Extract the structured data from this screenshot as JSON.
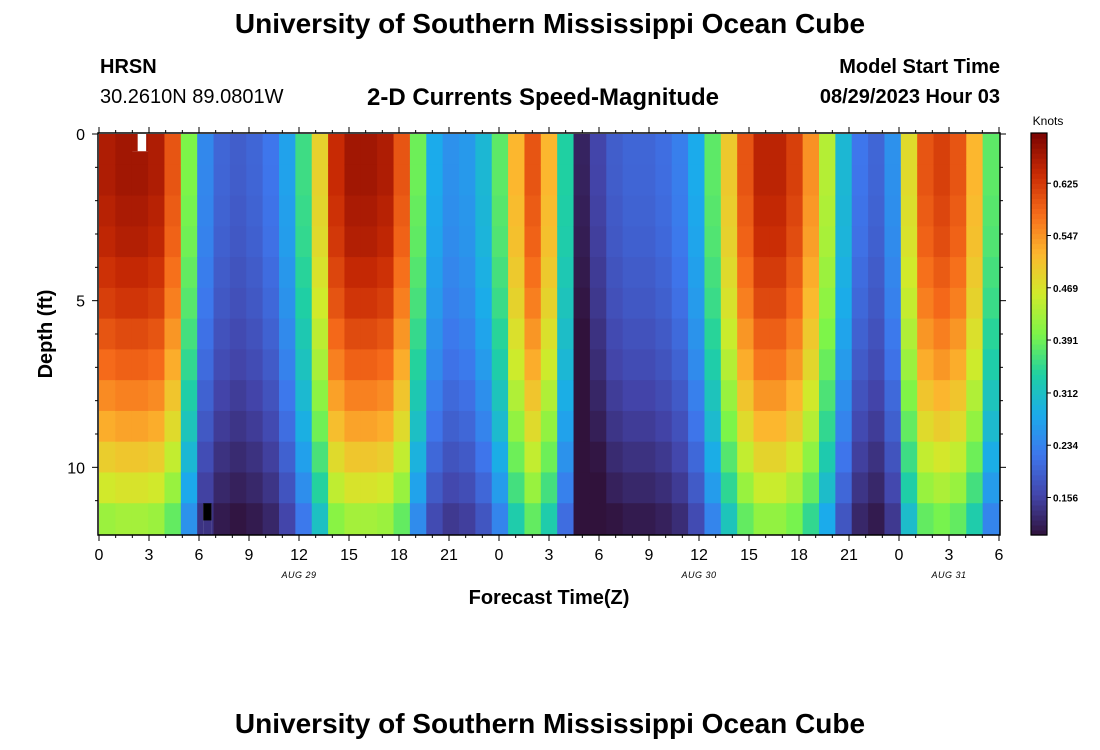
{
  "header": {
    "title": "University of Southern Mississippi Ocean Cube",
    "station": "HRSN",
    "coordinates": "30.2610N  89.0801W",
    "subtitle": "2-D Currents Speed-Magnitude",
    "model_start_label": "Model Start Time",
    "model_start_value": "08/29/2023 Hour 03"
  },
  "footer": {
    "title": "University of Southern Mississippi Ocean Cube"
  },
  "chart_data": {
    "type": "heatmap",
    "title": "2-D Currents Speed-Magnitude",
    "xlabel": "Forecast Time(Z)",
    "ylabel": "Depth (ft)",
    "x_range_hours": [
      0,
      54
    ],
    "y_range_ft": [
      0,
      12
    ],
    "x_tick_labels": [
      "0",
      "3",
      "6",
      "9",
      "12",
      "15",
      "18",
      "21",
      "0",
      "3",
      "6",
      "9",
      "12",
      "15",
      "18",
      "21",
      "0",
      "3",
      "6"
    ],
    "y_tick_labels": [
      "0",
      "5",
      "10"
    ],
    "y_tick_values": [
      0,
      5,
      10
    ],
    "date_labels": [
      {
        "label": "AUG 29",
        "hour": 12
      },
      {
        "label": "AUG 30",
        "hour": 36
      },
      {
        "label": "AUG 31",
        "hour": 51
      }
    ],
    "colorbar": {
      "title": "Knots",
      "ticks": [
        "0.625",
        "0.547",
        "0.469",
        "0.391",
        "0.312",
        "0.234",
        "0.156"
      ],
      "tick_values": [
        0.625,
        0.547,
        0.469,
        0.391,
        0.312,
        0.234,
        0.156
      ],
      "range": [
        0.1,
        0.7
      ]
    },
    "surface_speed_by_hour": [
      0.66,
      0.67,
      0.67,
      0.66,
      0.6,
      0.4,
      0.24,
      0.2,
      0.19,
      0.2,
      0.22,
      0.27,
      0.36,
      0.49,
      0.64,
      0.67,
      0.67,
      0.66,
      0.6,
      0.39,
      0.28,
      0.25,
      0.26,
      0.3,
      0.38,
      0.52,
      0.6,
      0.52,
      0.34,
      0.12,
      0.16,
      0.19,
      0.2,
      0.2,
      0.21,
      0.23,
      0.28,
      0.38,
      0.5,
      0.6,
      0.65,
      0.65,
      0.62,
      0.55,
      0.44,
      0.3,
      0.22,
      0.2,
      0.25,
      0.48,
      0.6,
      0.62,
      0.6,
      0.52,
      0.38
    ],
    "depth_attenuation_by_ft": [
      1.0,
      1.0,
      0.99,
      0.98,
      0.96,
      0.94,
      0.91,
      0.88,
      0.84,
      0.8,
      0.75,
      0.7,
      0.64
    ],
    "missing_cells": [
      {
        "hour": 2,
        "depth_ft": 0,
        "color": "#ffffff"
      },
      {
        "hour": 6,
        "depth_ft": 12,
        "color": "#000000"
      }
    ]
  }
}
